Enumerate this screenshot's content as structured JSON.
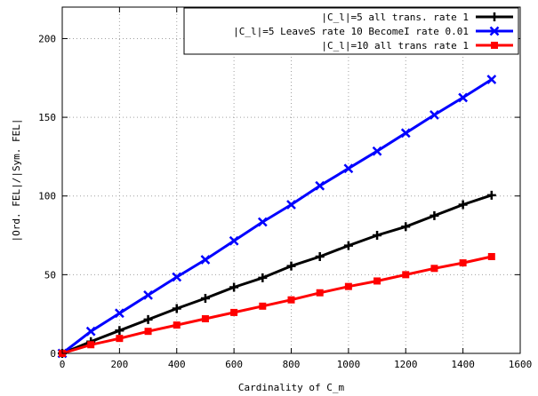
{
  "chart_data": {
    "type": "line",
    "title": "",
    "xlabel": "Cardinality of C_m",
    "ylabel": "|Ord. FEL|/|Sym. FEL|",
    "xlim": [
      0,
      1600
    ],
    "ylim": [
      0,
      220
    ],
    "xticks": [
      0,
      200,
      400,
      600,
      800,
      1000,
      1200,
      1400,
      1600
    ],
    "yticks": [
      0,
      50,
      100,
      150,
      200
    ],
    "grid": true,
    "legend_position": "top-right",
    "series": [
      {
        "name": "|C_l|=5  all trans. rate 1",
        "color": "#000000",
        "marker": "plus",
        "x": [
          0,
          100,
          200,
          300,
          400,
          500,
          600,
          700,
          800,
          900,
          1000,
          1100,
          1200,
          1300,
          1400,
          1500
        ],
        "y": [
          0,
          7.5,
          14.5,
          21.5,
          28.5,
          35,
          42,
          48,
          55.5,
          61.5,
          68.5,
          75,
          80.5,
          87.5,
          94.5,
          100.5
        ]
      },
      {
        "name": "|C_l|=5   LeaveS rate 10 BecomeI rate 0.01",
        "color": "#0000ff",
        "marker": "cross",
        "x": [
          0,
          100,
          200,
          300,
          400,
          500,
          600,
          700,
          800,
          900,
          1000,
          1100,
          1200,
          1300,
          1400,
          1500
        ],
        "y": [
          0,
          14,
          25.5,
          37,
          48.5,
          59.5,
          71.5,
          83.5,
          94.5,
          106.5,
          117.5,
          128.5,
          140,
          151.5,
          162.5,
          174
        ]
      },
      {
        "name": "|C_l|=10  all trans rate 1",
        "color": "#ff0000",
        "marker": "square",
        "x": [
          0,
          100,
          200,
          300,
          400,
          500,
          600,
          700,
          800,
          900,
          1000,
          1100,
          1200,
          1300,
          1400,
          1500
        ],
        "y": [
          0,
          5.5,
          9.5,
          14,
          18,
          22,
          26,
          30,
          34,
          38.5,
          42.5,
          46,
          50,
          54,
          57.5,
          61.5
        ]
      }
    ]
  }
}
